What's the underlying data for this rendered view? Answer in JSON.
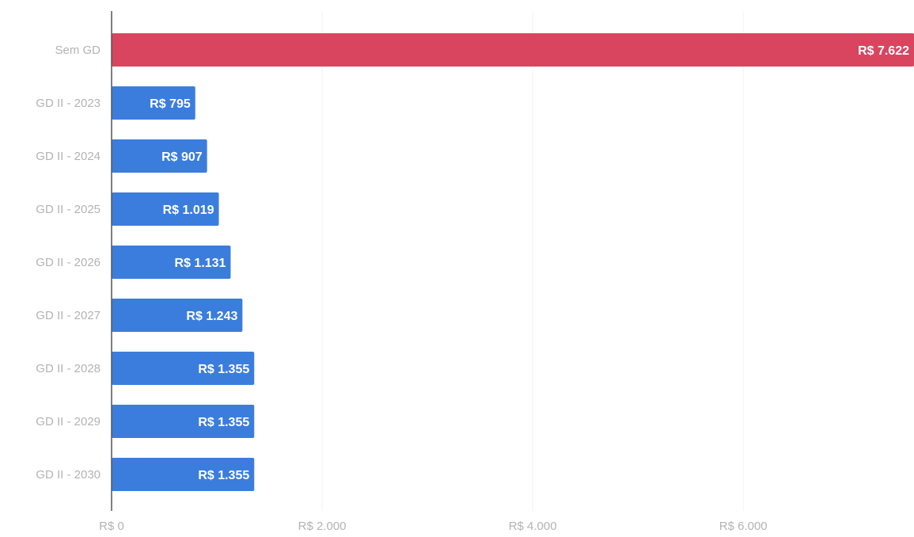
{
  "chart_data": {
    "type": "bar",
    "orientation": "horizontal",
    "categories": [
      "Sem GD",
      "GD II - 2023",
      "GD II - 2024",
      "GD II - 2025",
      "GD II - 2026",
      "GD II - 2027",
      "GD II - 2028",
      "GD II - 2029",
      "GD II - 2030"
    ],
    "values": [
      7622,
      795,
      907,
      1019,
      1131,
      1243,
      1355,
      1355,
      1355
    ],
    "value_labels": [
      "R$ 7.622",
      "R$ 795",
      "R$ 907",
      "R$ 1.019",
      "R$ 1.131",
      "R$ 1.243",
      "R$ 1.355",
      "R$ 1.355",
      "R$ 1.355"
    ],
    "bar_colors": [
      "#d9455f",
      "#3b7ddd",
      "#3b7ddd",
      "#3b7ddd",
      "#3b7ddd",
      "#3b7ddd",
      "#3b7ddd",
      "#3b7ddd",
      "#3b7ddd"
    ],
    "xticks": [
      0,
      2000,
      4000,
      6000
    ],
    "xtick_labels": [
      "R$ 0",
      "R$ 2.000",
      "R$ 4.000",
      "R$ 6.000"
    ],
    "xlim": [
      0,
      7622
    ],
    "grid": true,
    "title": "",
    "xlabel": "",
    "ylabel": ""
  }
}
